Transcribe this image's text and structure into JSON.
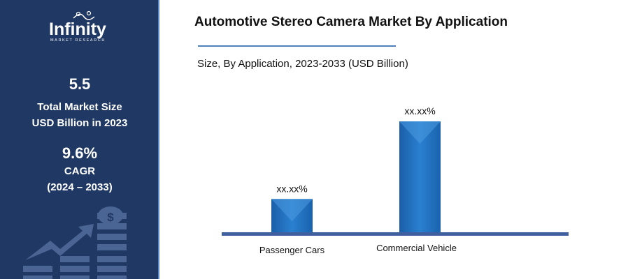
{
  "sidebar": {
    "logo_text": "Infinity",
    "logo_subtext": "MARKET RESEARCH",
    "market_size_value": "5.5",
    "market_size_label_1": "Total Market Size",
    "market_size_label_2": "USD Billion in 2023",
    "cagr_value": "9.6%",
    "cagr_label": "CAGR",
    "cagr_period": "(2024 – 2033)",
    "background_color": "#203864"
  },
  "chart_data": {
    "type": "bar",
    "title": "Automotive Stereo Camera Market By Application",
    "subtitle": "Size, By Application, 2023-2033 (USD Billion)",
    "categories": [
      "Passenger Cars",
      "Commercial Vehicle"
    ],
    "values": [
      0.3,
      1.0
    ],
    "data_labels": [
      "xx.xx%",
      "xx.xx%"
    ],
    "ylim": [
      0,
      1
    ],
    "grid": false,
    "bar_color": "#1f6fc0",
    "axis_color": "#3f5f9f"
  }
}
